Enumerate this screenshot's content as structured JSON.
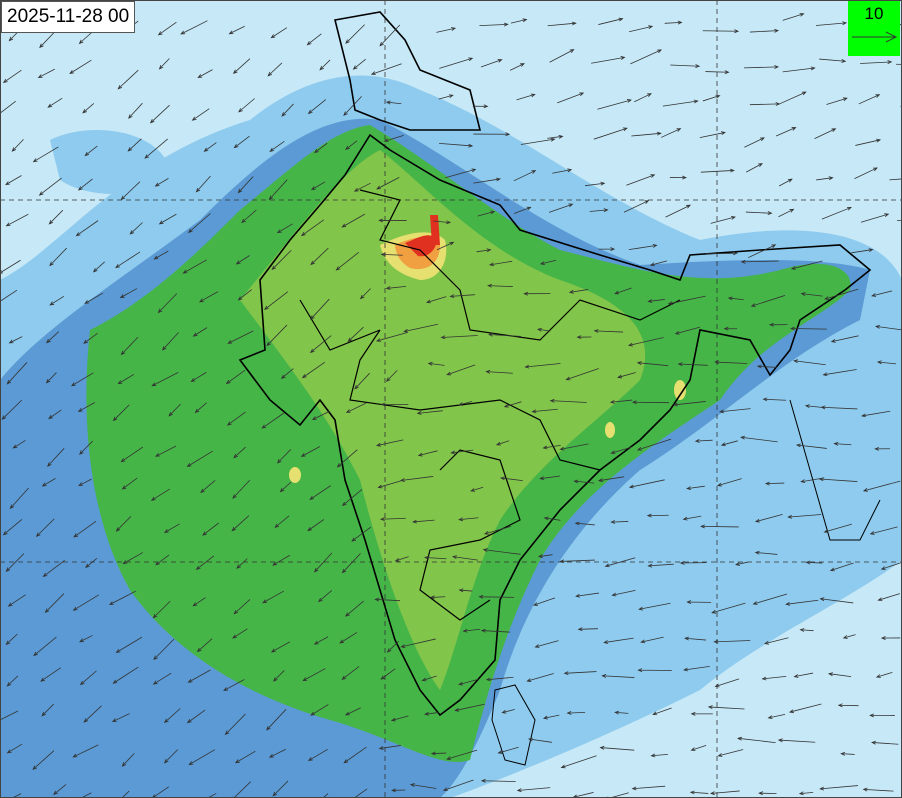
{
  "map": {
    "timestamp": "2025-11-28 00",
    "wind_reference": {
      "value": "10",
      "icon": "arrow-right-icon"
    },
    "colors": {
      "background": "#c6e8f7",
      "light_blue": "#8ecbee",
      "mid_blue": "#5b9ad4",
      "green": "#46b548",
      "light_green": "#8cc84b",
      "yellow": "#e6e070",
      "orange": "#f0a040",
      "red": "#e03020",
      "scale_box": "#00ff00"
    }
  }
}
